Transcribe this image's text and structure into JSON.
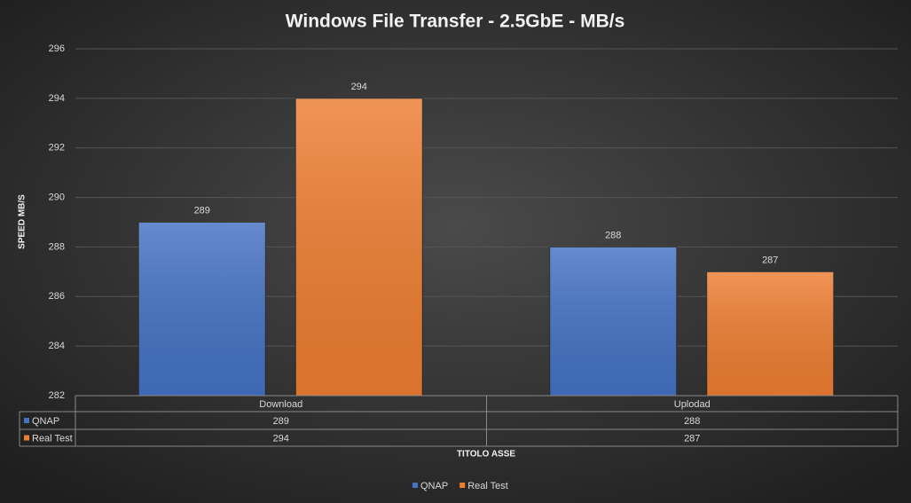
{
  "chart_data": {
    "type": "bar",
    "title": "Windows File Transfer - 2.5GbE - MB/s",
    "categories": [
      "Download",
      "Uplodad"
    ],
    "series": [
      {
        "name": "QNAP",
        "color": "#4472c4",
        "values": [
          289,
          288
        ]
      },
      {
        "name": "Real Test",
        "color": "#ed7d31",
        "values": [
          294,
          287
        ]
      }
    ],
    "ylim": [
      282,
      296
    ],
    "yticks": [
      282,
      284,
      286,
      288,
      290,
      292,
      294,
      296
    ],
    "y_label": "SPEED MB/S",
    "x_label": "TITOLO ASSE",
    "grid": true,
    "data_table": true,
    "legend": "bottom"
  }
}
